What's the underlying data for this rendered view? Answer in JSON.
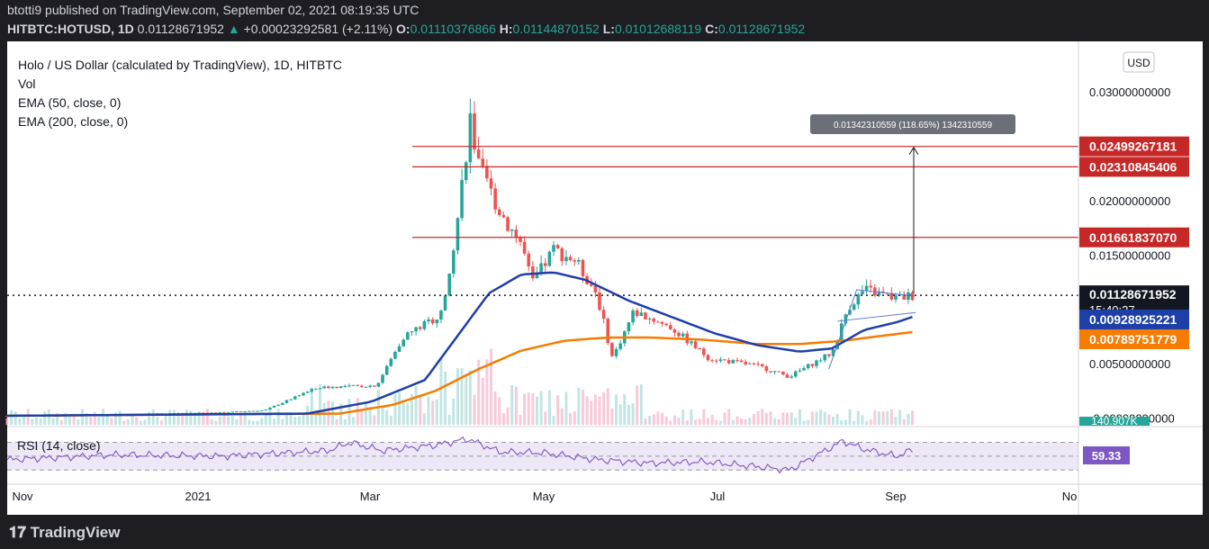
{
  "header": {
    "published": "btotti9 published on TradingView.com, September 02, 2021 08:19:35 UTC",
    "symbol": "HITBTC:HOTUSD, 1D",
    "last": "0.01128671952",
    "change_arrow": "▲",
    "change": "+0.00023292581 (+2.11%)",
    "o_label": "O:",
    "o_value": "0.01110376866",
    "h_label": "H:",
    "h_value": "0.01144870152",
    "l_label": "L:",
    "l_value": "0.01012688119",
    "c_label": "C:",
    "c_value": "0.01128671952"
  },
  "legend": {
    "title": "Holo / US Dollar (calculated by TradingView), 1D, HITBTC",
    "vol": "Vol",
    "ema50": "EMA (50, close, 0)",
    "ema200": "EMA (200, close, 0)"
  },
  "rsi_label": "RSI (14, close)",
  "rsi_value": "59.33",
  "currency_button": "USD",
  "colors": {
    "up": "#26a69a",
    "down": "#ef5350",
    "ema50": "#1e3fa8",
    "ema200": "#f57c00",
    "resistance": "#c62828",
    "rsi_line": "#7e57c2"
  },
  "footer": {
    "logo": "TradingView"
  },
  "chart_data": {
    "type": "candlestick",
    "title": "Holo / US Dollar (calculated by TradingView), 1D, HITBTC",
    "x_ticks": [
      "Nov",
      "2021",
      "Mar",
      "May",
      "Jul",
      "Sep",
      "No"
    ],
    "y_ticks": [
      "0.03000000000",
      "0.02000000000",
      "0.01500000000",
      "0.00500000000",
      "-0.00000000000"
    ],
    "ylim": [
      -0.0003,
      0.033
    ],
    "price_labels": [
      {
        "label": "0.02499267181",
        "value": 0.02499267181,
        "kind": "resistance"
      },
      {
        "label": "0.02310845406",
        "value": 0.02310845406,
        "kind": "resistance"
      },
      {
        "label": "0.01661837070",
        "value": 0.0166183707,
        "kind": "resistance"
      },
      {
        "label": "0.01128671952",
        "value": 0.01128671952,
        "kind": "last"
      },
      {
        "label": "0.00928925221",
        "value": 0.00928925221,
        "kind": "ema50"
      },
      {
        "label": "0.00789751779",
        "value": 0.00789751779,
        "kind": "ema200"
      }
    ],
    "countdown": "15:40:27",
    "volume_label": "140.907K",
    "measure_label": "0.01342310559 (118.65%) 1342310559",
    "price_anchors": [
      [
        0,
        0.0002
      ],
      [
        0.195,
        0.0005
      ],
      [
        0.24,
        0.0007
      ],
      [
        0.29,
        0.0028
      ],
      [
        0.345,
        0.003
      ],
      [
        0.37,
        0.0075
      ],
      [
        0.405,
        0.0095
      ],
      [
        0.42,
        0.018
      ],
      [
        0.432,
        0.0275
      ],
      [
        0.44,
        0.023
      ],
      [
        0.46,
        0.019
      ],
      [
        0.48,
        0.016
      ],
      [
        0.49,
        0.0123
      ],
      [
        0.51,
        0.0155
      ],
      [
        0.53,
        0.0145
      ],
      [
        0.55,
        0.0115
      ],
      [
        0.565,
        0.0055
      ],
      [
        0.585,
        0.0098
      ],
      [
        0.62,
        0.0083
      ],
      [
        0.655,
        0.0055
      ],
      [
        0.7,
        0.0048
      ],
      [
        0.73,
        0.0038
      ],
      [
        0.77,
        0.006
      ],
      [
        0.785,
        0.0102
      ],
      [
        0.8,
        0.0118
      ],
      [
        0.83,
        0.011
      ],
      [
        0.845,
        0.0113
      ]
    ],
    "ema50_anchors": [
      [
        0,
        0.0002
      ],
      [
        0.28,
        0.0004
      ],
      [
        0.34,
        0.0015
      ],
      [
        0.39,
        0.0035
      ],
      [
        0.42,
        0.0075
      ],
      [
        0.45,
        0.0115
      ],
      [
        0.48,
        0.0132
      ],
      [
        0.51,
        0.0134
      ],
      [
        0.54,
        0.0127
      ],
      [
        0.58,
        0.0108
      ],
      [
        0.62,
        0.0093
      ],
      [
        0.66,
        0.0078
      ],
      [
        0.7,
        0.0067
      ],
      [
        0.74,
        0.0061
      ],
      [
        0.77,
        0.0064
      ],
      [
        0.8,
        0.0081
      ],
      [
        0.83,
        0.0088
      ],
      [
        0.845,
        0.0093
      ]
    ],
    "ema200_anchors": [
      [
        0,
        0.0002
      ],
      [
        0.31,
        0.0004
      ],
      [
        0.36,
        0.0012
      ],
      [
        0.4,
        0.0025
      ],
      [
        0.44,
        0.0045
      ],
      [
        0.48,
        0.0062
      ],
      [
        0.52,
        0.0071
      ],
      [
        0.56,
        0.0074
      ],
      [
        0.6,
        0.0074
      ],
      [
        0.65,
        0.0072
      ],
      [
        0.7,
        0.0068
      ],
      [
        0.74,
        0.0068
      ],
      [
        0.78,
        0.0071
      ],
      [
        0.82,
        0.0076
      ],
      [
        0.845,
        0.0079
      ]
    ],
    "rsi_ylim": [
      20,
      85
    ],
    "rsi_anchors": [
      [
        0,
        45
      ],
      [
        0.1,
        52
      ],
      [
        0.2,
        50
      ],
      [
        0.3,
        58
      ],
      [
        0.32,
        70
      ],
      [
        0.35,
        58
      ],
      [
        0.4,
        66
      ],
      [
        0.43,
        75
      ],
      [
        0.46,
        56
      ],
      [
        0.5,
        55
      ],
      [
        0.55,
        45
      ],
      [
        0.6,
        40
      ],
      [
        0.65,
        42
      ],
      [
        0.7,
        35
      ],
      [
        0.73,
        30
      ],
      [
        0.76,
        55
      ],
      [
        0.78,
        72
      ],
      [
        0.8,
        60
      ],
      [
        0.83,
        50
      ],
      [
        0.845,
        59
      ]
    ],
    "rsi_bands": [
      70,
      50,
      30
    ],
    "grid": false,
    "legend_position": "top-left"
  }
}
